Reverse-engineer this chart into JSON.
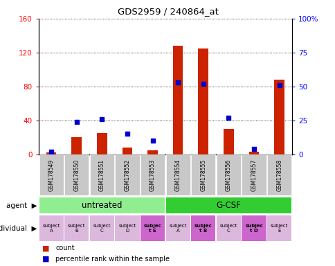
{
  "title": "GDS2959 / 240864_at",
  "samples": [
    "GSM178549",
    "GSM178550",
    "GSM178551",
    "GSM178552",
    "GSM178553",
    "GSM178554",
    "GSM178555",
    "GSM178556",
    "GSM178557",
    "GSM178558"
  ],
  "counts": [
    2,
    20,
    25,
    8,
    5,
    128,
    125,
    30,
    3,
    88
  ],
  "percentile_ranks": [
    2,
    24,
    26,
    15,
    10,
    53,
    52,
    27,
    4,
    51
  ],
  "agent_groups": [
    {
      "label": "untreated",
      "start": 0,
      "end": 5,
      "color": "#90EE90"
    },
    {
      "label": "G-CSF",
      "start": 5,
      "end": 10,
      "color": "#32CD32"
    }
  ],
  "individuals": [
    {
      "label": "subject\nA",
      "idx": 0,
      "bold": false
    },
    {
      "label": "subject\nB",
      "idx": 1,
      "bold": false
    },
    {
      "label": "subject\nC",
      "idx": 2,
      "bold": false
    },
    {
      "label": "subject\nD",
      "idx": 3,
      "bold": false
    },
    {
      "label": "subjec\nt E",
      "idx": 4,
      "bold": true
    },
    {
      "label": "subject\nA",
      "idx": 5,
      "bold": false
    },
    {
      "label": "subjec\nt B",
      "idx": 6,
      "bold": true
    },
    {
      "label": "subject\nC",
      "idx": 7,
      "bold": false
    },
    {
      "label": "subjec\nt D",
      "idx": 8,
      "bold": true
    },
    {
      "label": "subject\nE",
      "idx": 9,
      "bold": false
    }
  ],
  "individual_colors": [
    "#DDB8DD",
    "#DDB8DD",
    "#DDB8DD",
    "#DDB8DD",
    "#CC66CC",
    "#DDB8DD",
    "#CC66CC",
    "#DDB8DD",
    "#CC66CC",
    "#DDB8DD"
  ],
  "ylim_left": [
    0,
    160
  ],
  "ylim_right": [
    0,
    100
  ],
  "yticks_left": [
    0,
    40,
    80,
    120,
    160
  ],
  "ytick_labels_left": [
    "0",
    "40",
    "80",
    "120",
    "160"
  ],
  "yticks_right": [
    0,
    25,
    50,
    75,
    100
  ],
  "ytick_labels_right": [
    "0",
    "25",
    "50",
    "75",
    "100%"
  ],
  "bar_color": "#CC2200",
  "dot_color": "#0000CC",
  "background_color": "#ffffff",
  "sample_box_color": "#C8C8C8"
}
